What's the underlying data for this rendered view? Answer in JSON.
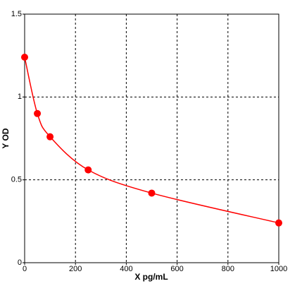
{
  "chart_data": {
    "type": "line",
    "x_label": "X pg/mL",
    "y_label": "Y OD",
    "x": [
      0,
      50,
      100,
      250,
      500,
      1000
    ],
    "series": [
      {
        "color": "#ff0000",
        "values": [
          1.24,
          0.9,
          0.76,
          0.56,
          0.42,
          0.24
        ]
      }
    ],
    "xlim": [
      0,
      1000
    ],
    "ylim": [
      0,
      1.5
    ],
    "xticks": [
      0,
      200,
      400,
      600,
      800,
      1000
    ],
    "yticks": [
      0,
      0.5,
      1,
      1.5
    ],
    "grid": true
  }
}
